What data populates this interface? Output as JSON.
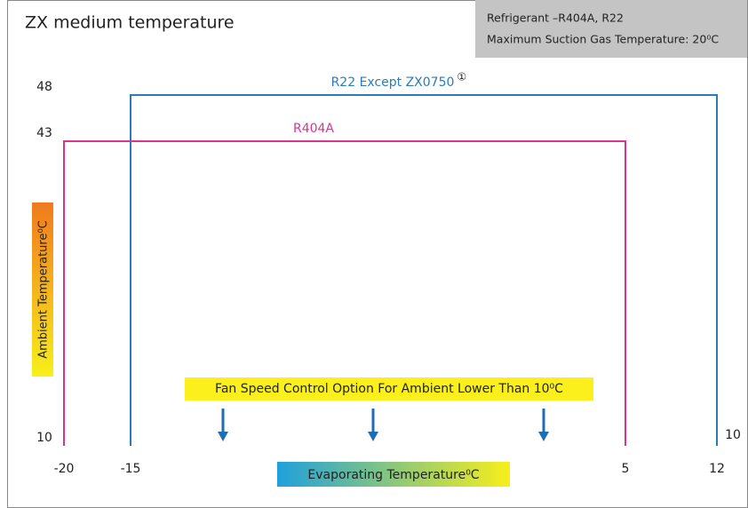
{
  "chart_data": {
    "type": "envelope",
    "title": "ZX medium temperature",
    "info": [
      "Refrigerant –R404A,  R22",
      "Maximum Suction Gas Temperature: 20⁰C"
    ],
    "xlabel": "Evaporating Temperature⁰C",
    "ylabel": "Ambient Temperature⁰C",
    "annotation": "Fan Speed Control Option For Ambient Lower Than 10⁰C",
    "note_marker": "①",
    "xlim": [
      -20,
      12
    ],
    "xticks": [
      -20,
      -15,
      5,
      12
    ],
    "ylim": [
      10,
      48
    ],
    "yticks": [
      10,
      43,
      48
    ],
    "y2lim": [
      10,
      48
    ],
    "y2ticks": [
      10
    ],
    "series": [
      {
        "name": "R22 Except ZX0750",
        "color": "#2b7bb9",
        "x": [
          -15,
          -15,
          12,
          12
        ],
        "values": [
          10,
          48,
          48,
          10
        ]
      },
      {
        "name": "R404A",
        "color": "#d8348f",
        "x": [
          -20,
          -20,
          5,
          5
        ],
        "values": [
          10,
          43,
          43,
          10
        ]
      }
    ]
  }
}
